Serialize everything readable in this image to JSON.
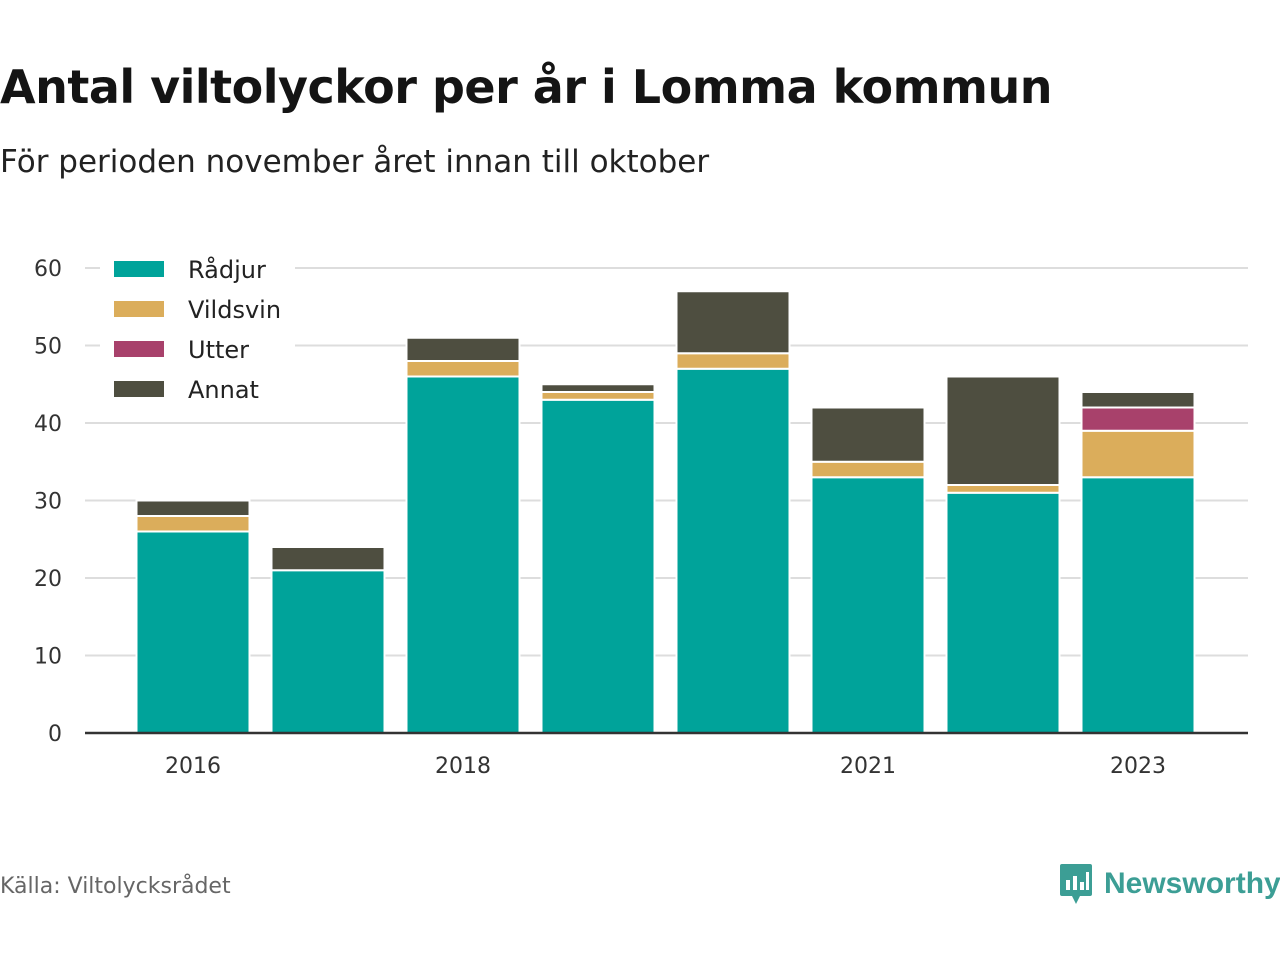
{
  "title": "Antal viltolyckor per år i Lomma kommun",
  "subtitle": "För perioden november året innan till oktober",
  "source": "Källa: Viltolycksrådet",
  "brand": {
    "name": "Newsworthy",
    "icon": "newsworthy-logo-icon",
    "color": "#3c9e95"
  },
  "chart_data": {
    "type": "bar",
    "stacked": true,
    "categories": [
      "2016",
      "2017",
      "2018",
      "2019",
      "2020",
      "2021",
      "2022",
      "2023"
    ],
    "tick_labels": [
      "2016",
      "",
      "2018",
      "",
      "",
      "2021",
      "",
      "2023"
    ],
    "series": [
      {
        "name": "Rådjur",
        "color": "#00a39a",
        "values": [
          26,
          21,
          46,
          43,
          47,
          33,
          31,
          33
        ]
      },
      {
        "name": "Vildsvin",
        "color": "#dbad5b",
        "values": [
          2,
          0,
          2,
          1,
          2,
          2,
          1,
          6
        ]
      },
      {
        "name": "Utter",
        "color": "#a8416b",
        "values": [
          0,
          0,
          0,
          0,
          0,
          0,
          0,
          3
        ]
      },
      {
        "name": "Annat",
        "color": "#4e4e40",
        "values": [
          2,
          3,
          3,
          1,
          8,
          7,
          14,
          2
        ]
      }
    ],
    "ylim": [
      0,
      60
    ],
    "yticks": [
      0,
      10,
      20,
      30,
      40,
      50,
      60
    ],
    "grid": true,
    "legend_position": "top-left",
    "xlabel": "",
    "ylabel": ""
  }
}
